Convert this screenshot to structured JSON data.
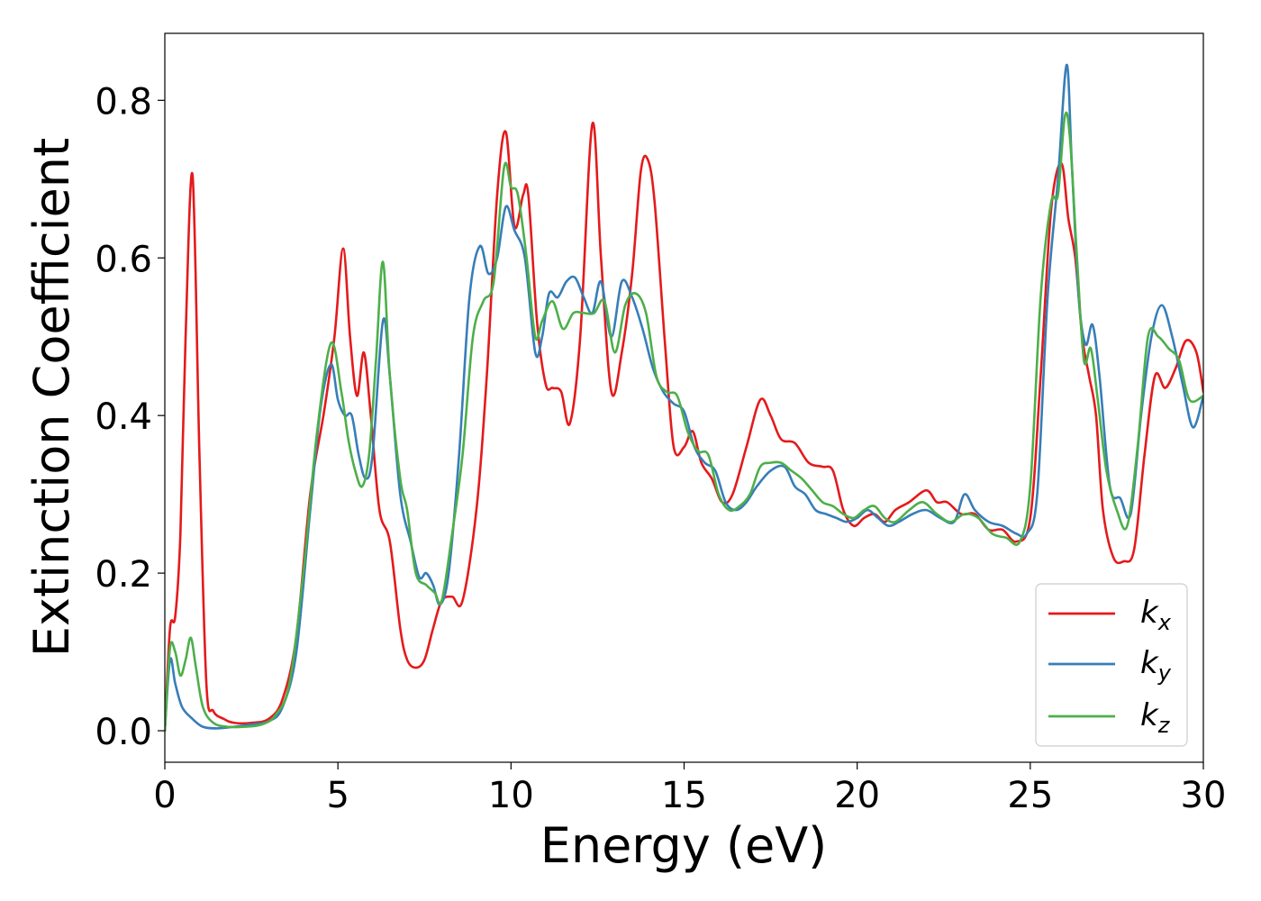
{
  "chart_data": {
    "type": "line",
    "title": "",
    "xlabel": "Energy (eV)",
    "ylabel": "Extinction Coefficient",
    "xlim": [
      0,
      30
    ],
    "ylim": [
      -0.04,
      0.885
    ],
    "xticks": [
      0,
      5,
      10,
      15,
      20,
      25,
      30
    ],
    "yticks": [
      0.0,
      0.2,
      0.4,
      0.6,
      0.8
    ],
    "xtick_labels": [
      "0",
      "5",
      "10",
      "15",
      "20",
      "25",
      "30"
    ],
    "ytick_labels": [
      "0.0",
      "0.2",
      "0.4",
      "0.6",
      "0.8"
    ],
    "grid": false,
    "legend_position": "bottom-right",
    "series": [
      {
        "name": "k",
        "subscript": "x",
        "color": "#e41a1c",
        "x": [
          0,
          0.15,
          0.3,
          0.45,
          0.6,
          0.8,
          1.0,
          1.2,
          1.4,
          1.7,
          2.0,
          2.5,
          3.0,
          3.4,
          3.8,
          4.2,
          4.6,
          4.9,
          5.15,
          5.35,
          5.55,
          5.75,
          5.95,
          6.2,
          6.5,
          6.8,
          7.0,
          7.25,
          7.5,
          7.75,
          8.0,
          8.3,
          8.6,
          9.0,
          9.3,
          9.6,
          9.85,
          10.1,
          10.35,
          10.5,
          10.75,
          11.0,
          11.2,
          11.45,
          11.7,
          12.0,
          12.35,
          12.6,
          12.9,
          13.2,
          13.5,
          13.75,
          13.95,
          14.15,
          14.45,
          14.7,
          15.0,
          15.25,
          15.5,
          15.8,
          16.1,
          16.4,
          16.8,
          17.2,
          17.5,
          17.8,
          18.2,
          18.6,
          19.0,
          19.3,
          19.6,
          19.9,
          20.2,
          20.5,
          20.8,
          21.1,
          21.5,
          22.0,
          22.3,
          22.6,
          23.0,
          23.4,
          23.8,
          24.2,
          24.6,
          25.0,
          25.3,
          25.6,
          25.9,
          26.1,
          26.3,
          26.5,
          26.7,
          26.9,
          27.1,
          27.4,
          27.7,
          28.0,
          28.3,
          28.6,
          28.9,
          29.2,
          29.5,
          29.8,
          30
        ],
        "y": [
          0.0,
          0.13,
          0.145,
          0.25,
          0.5,
          0.705,
          0.35,
          0.06,
          0.025,
          0.015,
          0.01,
          0.01,
          0.015,
          0.04,
          0.12,
          0.3,
          0.405,
          0.5,
          0.612,
          0.5,
          0.425,
          0.48,
          0.4,
          0.28,
          0.24,
          0.13,
          0.09,
          0.08,
          0.09,
          0.13,
          0.165,
          0.17,
          0.165,
          0.28,
          0.45,
          0.68,
          0.76,
          0.64,
          0.68,
          0.68,
          0.52,
          0.44,
          0.435,
          0.43,
          0.39,
          0.5,
          0.77,
          0.6,
          0.43,
          0.48,
          0.58,
          0.71,
          0.725,
          0.67,
          0.49,
          0.36,
          0.36,
          0.38,
          0.34,
          0.32,
          0.29,
          0.3,
          0.36,
          0.42,
          0.4,
          0.37,
          0.365,
          0.34,
          0.335,
          0.33,
          0.28,
          0.26,
          0.27,
          0.275,
          0.265,
          0.28,
          0.29,
          0.305,
          0.29,
          0.29,
          0.275,
          0.275,
          0.255,
          0.255,
          0.24,
          0.27,
          0.45,
          0.66,
          0.72,
          0.65,
          0.6,
          0.5,
          0.45,
          0.4,
          0.28,
          0.22,
          0.215,
          0.23,
          0.35,
          0.45,
          0.435,
          0.46,
          0.495,
          0.48,
          0.43
        ]
      },
      {
        "name": "k",
        "subscript": "y",
        "color": "#377eb8",
        "x": [
          0,
          0.15,
          0.3,
          0.5,
          0.8,
          1.1,
          1.5,
          2.0,
          2.5,
          3.0,
          3.4,
          3.8,
          4.2,
          4.5,
          4.8,
          5.0,
          5.2,
          5.4,
          5.6,
          5.8,
          6.0,
          6.3,
          6.5,
          6.8,
          7.1,
          7.35,
          7.55,
          7.75,
          7.95,
          8.2,
          8.5,
          8.8,
          9.1,
          9.35,
          9.6,
          9.85,
          10.1,
          10.4,
          10.7,
          10.9,
          11.1,
          11.35,
          11.6,
          11.85,
          12.1,
          12.35,
          12.6,
          12.9,
          13.2,
          13.5,
          13.8,
          14.1,
          14.4,
          14.7,
          15.0,
          15.3,
          15.6,
          15.9,
          16.2,
          16.5,
          16.8,
          17.1,
          17.5,
          17.9,
          18.2,
          18.5,
          18.8,
          19.1,
          19.4,
          19.7,
          20.0,
          20.3,
          20.6,
          20.9,
          21.2,
          21.6,
          22.0,
          22.4,
          22.8,
          23.1,
          23.4,
          23.8,
          24.2,
          24.6,
          24.9,
          25.2,
          25.5,
          25.8,
          26.05,
          26.2,
          26.4,
          26.6,
          26.8,
          27.0,
          27.3,
          27.6,
          27.9,
          28.2,
          28.5,
          28.8,
          29.1,
          29.4,
          29.7,
          30
        ],
        "y": [
          0.0,
          0.09,
          0.06,
          0.03,
          0.015,
          0.005,
          0.003,
          0.005,
          0.008,
          0.012,
          0.03,
          0.1,
          0.28,
          0.41,
          0.465,
          0.42,
          0.4,
          0.4,
          0.35,
          0.32,
          0.35,
          0.52,
          0.45,
          0.3,
          0.24,
          0.195,
          0.2,
          0.185,
          0.16,
          0.2,
          0.35,
          0.55,
          0.615,
          0.58,
          0.6,
          0.665,
          0.635,
          0.6,
          0.48,
          0.5,
          0.555,
          0.55,
          0.57,
          0.575,
          0.55,
          0.53,
          0.57,
          0.5,
          0.57,
          0.55,
          0.51,
          0.46,
          0.43,
          0.415,
          0.405,
          0.36,
          0.34,
          0.33,
          0.29,
          0.28,
          0.29,
          0.31,
          0.33,
          0.335,
          0.31,
          0.3,
          0.28,
          0.275,
          0.27,
          0.265,
          0.27,
          0.28,
          0.27,
          0.26,
          0.265,
          0.275,
          0.28,
          0.27,
          0.265,
          0.3,
          0.28,
          0.265,
          0.26,
          0.25,
          0.25,
          0.3,
          0.55,
          0.7,
          0.845,
          0.72,
          0.55,
          0.49,
          0.515,
          0.45,
          0.31,
          0.295,
          0.275,
          0.4,
          0.5,
          0.54,
          0.5,
          0.44,
          0.385,
          0.425
        ]
      },
      {
        "name": "k",
        "subscript": "z",
        "color": "#4daf4a",
        "x": [
          0,
          0.15,
          0.3,
          0.45,
          0.6,
          0.75,
          0.9,
          1.1,
          1.4,
          1.8,
          2.3,
          2.8,
          3.2,
          3.6,
          4.0,
          4.4,
          4.8,
          5.1,
          5.3,
          5.5,
          5.7,
          5.9,
          6.1,
          6.3,
          6.5,
          6.8,
          7.0,
          7.25,
          7.55,
          7.8,
          8.0,
          8.3,
          8.6,
          8.9,
          9.2,
          9.5,
          9.8,
          10.0,
          10.2,
          10.45,
          10.7,
          10.9,
          11.2,
          11.5,
          11.8,
          12.1,
          12.4,
          12.7,
          13.0,
          13.3,
          13.6,
          13.9,
          14.2,
          14.5,
          14.8,
          15.1,
          15.4,
          15.7,
          16.0,
          16.3,
          16.6,
          16.9,
          17.2,
          17.5,
          17.8,
          18.1,
          18.4,
          18.7,
          19.0,
          19.3,
          19.6,
          19.9,
          20.2,
          20.5,
          20.8,
          21.1,
          21.5,
          21.9,
          22.3,
          22.7,
          23.1,
          23.5,
          23.9,
          24.3,
          24.7,
          25.0,
          25.3,
          25.6,
          25.8,
          26.0,
          26.15,
          26.35,
          26.55,
          26.75,
          26.95,
          27.2,
          27.5,
          27.8,
          28.1,
          28.4,
          28.7,
          29.0,
          29.3,
          29.6,
          30
        ],
        "y": [
          0.0,
          0.105,
          0.1,
          0.07,
          0.09,
          0.118,
          0.08,
          0.03,
          0.01,
          0.005,
          0.005,
          0.008,
          0.02,
          0.06,
          0.2,
          0.38,
          0.492,
          0.43,
          0.37,
          0.33,
          0.31,
          0.35,
          0.47,
          0.595,
          0.45,
          0.32,
          0.28,
          0.2,
          0.185,
          0.175,
          0.165,
          0.25,
          0.35,
          0.5,
          0.545,
          0.57,
          0.715,
          0.69,
          0.68,
          0.6,
          0.5,
          0.52,
          0.545,
          0.51,
          0.53,
          0.53,
          0.53,
          0.545,
          0.48,
          0.54,
          0.555,
          0.53,
          0.45,
          0.43,
          0.425,
          0.38,
          0.355,
          0.35,
          0.3,
          0.28,
          0.285,
          0.3,
          0.335,
          0.34,
          0.34,
          0.33,
          0.32,
          0.305,
          0.29,
          0.285,
          0.275,
          0.27,
          0.28,
          0.285,
          0.27,
          0.265,
          0.28,
          0.29,
          0.275,
          0.265,
          0.275,
          0.27,
          0.25,
          0.245,
          0.24,
          0.31,
          0.55,
          0.67,
          0.68,
          0.78,
          0.75,
          0.6,
          0.47,
          0.485,
          0.42,
          0.33,
          0.28,
          0.26,
          0.36,
          0.5,
          0.5,
          0.485,
          0.47,
          0.42,
          0.425
        ]
      }
    ]
  }
}
